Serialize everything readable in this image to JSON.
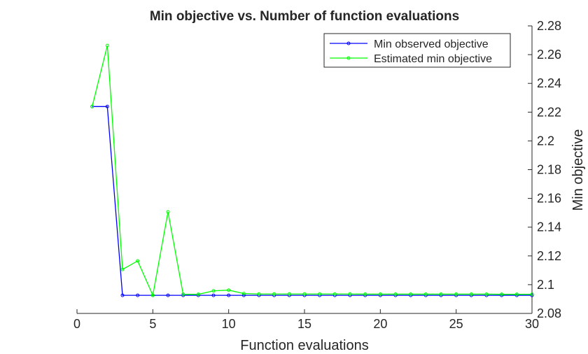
{
  "chart_data": {
    "type": "line",
    "title": "Min objective vs. Number of function evaluations",
    "xlabel": "Function evaluations",
    "ylabel": "Min objective",
    "xlim": [
      0,
      30
    ],
    "ylim": [
      2.08,
      2.28
    ],
    "xticks": [
      0,
      5,
      10,
      15,
      20,
      25,
      30
    ],
    "yticks": [
      2.08,
      2.1,
      2.12,
      2.14,
      2.16,
      2.18,
      2.2,
      2.22,
      2.24,
      2.26,
      2.28
    ],
    "ytick_labels": [
      "2.08",
      "2.1",
      "2.12",
      "2.14",
      "2.16",
      "2.18",
      "2.2",
      "2.22",
      "2.24",
      "2.26",
      "2.28"
    ],
    "yaxis_location": "right",
    "grid": false,
    "legend_position": "top-right",
    "x": [
      1,
      2,
      3,
      4,
      5,
      6,
      7,
      8,
      9,
      10,
      11,
      12,
      13,
      14,
      15,
      16,
      17,
      18,
      19,
      20,
      21,
      22,
      23,
      24,
      25,
      26,
      27,
      28,
      29,
      30
    ],
    "series": [
      {
        "name": "Min observed objective",
        "color": "#0000ff",
        "marker": "circle",
        "values": [
          2.2239,
          2.2239,
          2.0926,
          2.0926,
          2.0926,
          2.0926,
          2.0926,
          2.0926,
          2.0926,
          2.0926,
          2.0926,
          2.0926,
          2.0926,
          2.0926,
          2.0926,
          2.0926,
          2.0926,
          2.0926,
          2.0926,
          2.0926,
          2.0926,
          2.0926,
          2.0926,
          2.0926,
          2.0926,
          2.0926,
          2.0926,
          2.0926,
          2.0926,
          2.0926
        ]
      },
      {
        "name": "Estimated min objective",
        "color": "#00ff00",
        "marker": "circle",
        "values": [
          2.2239,
          2.2663,
          2.1106,
          2.1165,
          2.0926,
          2.1506,
          2.0933,
          2.0933,
          2.0957,
          2.0962,
          2.0938,
          2.0935,
          2.0935,
          2.0935,
          2.0935,
          2.0935,
          2.0935,
          2.0935,
          2.0934,
          2.0934,
          2.0934,
          2.0934,
          2.0934,
          2.0934,
          2.0934,
          2.0934,
          2.0934,
          2.0933,
          2.0933,
          2.0933
        ]
      }
    ]
  }
}
